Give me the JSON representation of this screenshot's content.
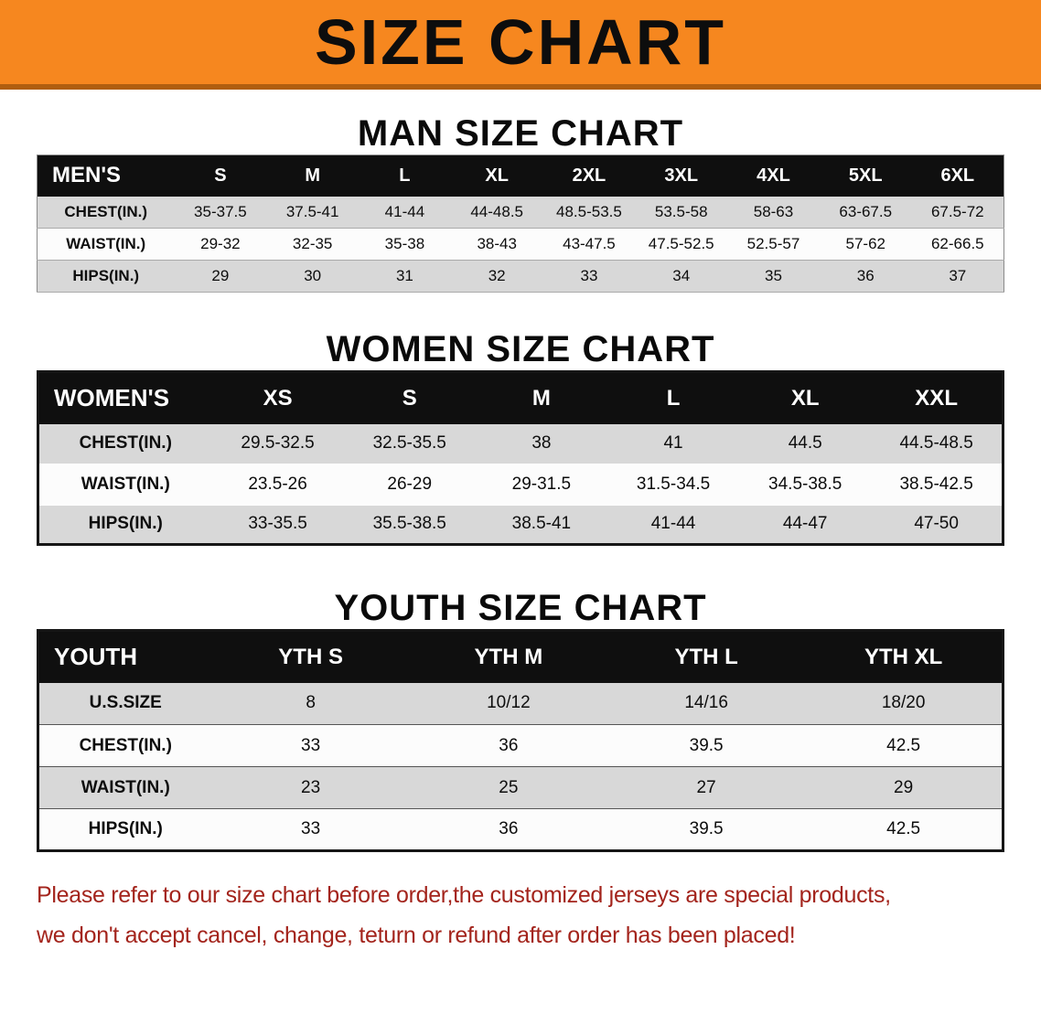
{
  "banner": {
    "title": "SIZE CHART"
  },
  "colors": {
    "banner_orange": "#f6871f",
    "header_black": "#0f0f0f",
    "row_gray": "#d8d8d8",
    "note_red": "#a3241c"
  },
  "sections": [
    {
      "heading": "MAN SIZE CHART",
      "table": {
        "header": [
          "MEN'S",
          "S",
          "M",
          "L",
          "XL",
          "2XL",
          "3XL",
          "4XL",
          "5XL",
          "6XL"
        ],
        "rows": [
          {
            "label": "CHEST(IN.)",
            "values": [
              "35-37.5",
              "37.5-41",
              "41-44",
              "44-48.5",
              "48.5-53.5",
              "53.5-58",
              "58-63",
              "63-67.5",
              "67.5-72"
            ]
          },
          {
            "label": "WAIST(IN.)",
            "values": [
              "29-32",
              "32-35",
              "35-38",
              "38-43",
              "43-47.5",
              "47.5-52.5",
              "52.5-57",
              "57-62",
              "62-66.5"
            ]
          },
          {
            "label": "HIPS(IN.)",
            "values": [
              "29",
              "30",
              "31",
              "32",
              "33",
              "34",
              "35",
              "36",
              "37"
            ]
          }
        ]
      }
    },
    {
      "heading": "WOMEN SIZE CHART",
      "table": {
        "header": [
          "WOMEN'S",
          "XS",
          "S",
          "M",
          "L",
          "XL",
          "XXL"
        ],
        "rows": [
          {
            "label": "CHEST(IN.)",
            "values": [
              "29.5-32.5",
              "32.5-35.5",
              "38",
              "41",
              "44.5",
              "44.5-48.5"
            ]
          },
          {
            "label": "WAIST(IN.)",
            "values": [
              "23.5-26",
              "26-29",
              "29-31.5",
              "31.5-34.5",
              "34.5-38.5",
              "38.5-42.5"
            ]
          },
          {
            "label": "HIPS(IN.)",
            "values": [
              "33-35.5",
              "35.5-38.5",
              "38.5-41",
              "41-44",
              "44-47",
              "47-50"
            ]
          }
        ]
      }
    },
    {
      "heading": "YOUTH SIZE CHART",
      "table": {
        "header": [
          "YOUTH",
          "YTH S",
          "YTH M",
          "YTH L",
          "YTH XL"
        ],
        "rows": [
          {
            "label": "U.S.SIZE",
            "values": [
              "8",
              "10/12",
              "14/16",
              "18/20"
            ]
          },
          {
            "label": "CHEST(IN.)",
            "values": [
              "33",
              "36",
              "39.5",
              "42.5"
            ]
          },
          {
            "label": "WAIST(IN.)",
            "values": [
              "23",
              "25",
              "27",
              "29"
            ]
          },
          {
            "label": "HIPS(IN.)",
            "values": [
              "33",
              "36",
              "39.5",
              "42.5"
            ]
          }
        ]
      }
    }
  ],
  "footnote": {
    "lines": [
      "Please refer to our size chart before order,the customized jerseys are special products,",
      "we don't accept cancel, change, teturn or refund after order has been placed!"
    ]
  }
}
